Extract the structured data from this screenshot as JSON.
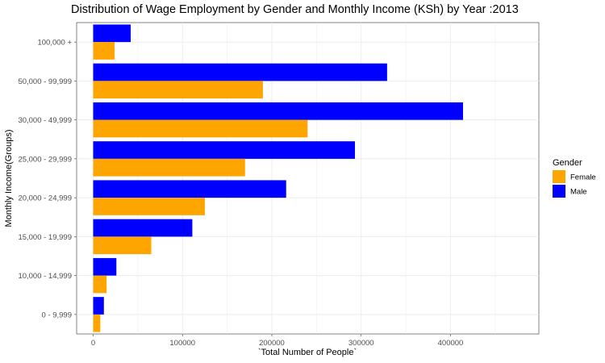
{
  "chart_data": {
    "type": "bar",
    "orientation": "horizontal",
    "title": "Distribution of Wage Employment by Gender and Monthly Income (KSh) by Year :2013",
    "xlabel": "`Total Number of People`",
    "ylabel": "Monthly Income(Groups)",
    "categories": [
      "0 - 9,999",
      "10,000 - 14,999",
      "15,000 - 19,999",
      "20,000 - 24,999",
      "25,000 - 29,999",
      "30,000 - 49,999",
      "50,000 - 99,999",
      "100,000 +"
    ],
    "series": [
      {
        "name": "Female",
        "color": "#FFA500",
        "values": [
          8000,
          15000,
          65000,
          125000,
          170000,
          240000,
          190000,
          24000
        ]
      },
      {
        "name": "Male",
        "color": "#0000FF",
        "values": [
          12000,
          26000,
          111000,
          216000,
          293000,
          414000,
          329000,
          42000
        ]
      }
    ],
    "xlim": [
      0,
      500000
    ],
    "xticks": [
      0,
      100000,
      200000,
      300000,
      400000
    ],
    "xtick_labels": [
      "0",
      "100000",
      "200000",
      "300000",
      "400000"
    ],
    "legend_title": "Gender",
    "legend_position": "right",
    "grid": true
  }
}
